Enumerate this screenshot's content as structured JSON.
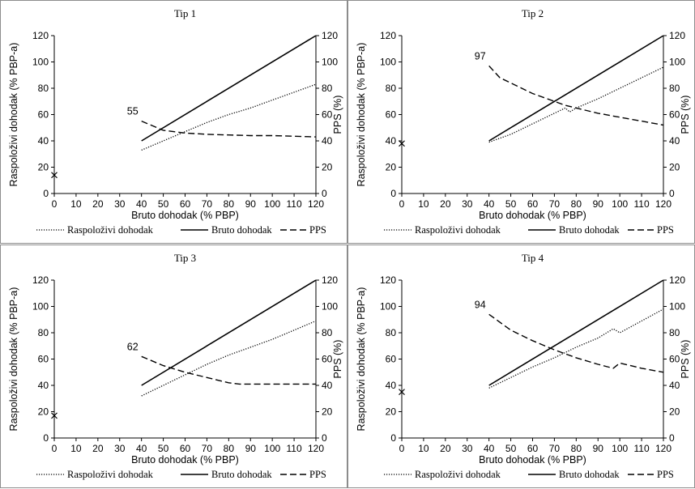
{
  "legend": {
    "items": [
      {
        "label": "Raspoloživi dohodak",
        "style": "dotted"
      },
      {
        "label": "Bruto dohodak",
        "style": "solid"
      },
      {
        "label": "PPS",
        "style": "dashed"
      }
    ]
  },
  "chart_data": [
    {
      "type": "line",
      "title": "Tip 1",
      "xlabel": "Bruto dohodak (% PBP)",
      "ylabel": "Raspoloživi dohodak (% PBP-a)",
      "y2label": "PPS (%)",
      "xlim": [
        0,
        120
      ],
      "ylim": [
        0,
        120
      ],
      "y2lim": [
        0,
        120
      ],
      "xticks": [
        "0",
        "10",
        "20",
        "30",
        "40",
        "50",
        "60",
        "70",
        "80",
        "90",
        "100",
        "110",
        "120"
      ],
      "yticks": [
        "0",
        "20",
        "40",
        "60",
        "80",
        "100",
        "120"
      ],
      "y2ticks": [
        "0",
        "20",
        "40",
        "60",
        "80",
        "100",
        "120"
      ],
      "annotation": "55",
      "cross_point": {
        "x": 0,
        "y": 14
      },
      "series": [
        {
          "name": "Raspoloživi dohodak",
          "x": [
            40,
            50,
            60,
            70,
            80,
            90,
            100,
            110,
            120
          ],
          "y": [
            33,
            40,
            47,
            54,
            60,
            65,
            71,
            77,
            83
          ]
        },
        {
          "name": "Bruto dohodak",
          "x": [
            40,
            120
          ],
          "y": [
            40,
            120
          ]
        },
        {
          "name": "PPS",
          "x": [
            40,
            50,
            60,
            70,
            80,
            90,
            100,
            110,
            120
          ],
          "y": [
            55,
            48,
            46,
            45,
            44.5,
            44,
            44,
            43.5,
            43
          ]
        }
      ]
    },
    {
      "type": "line",
      "title": "Tip 2",
      "xlabel": "Bruto dohodak (% PBP)",
      "ylabel": "Raspoloživi dohodak (% PBP-a)",
      "y2label": "PPS (%)",
      "xlim": [
        0,
        120
      ],
      "ylim": [
        0,
        120
      ],
      "y2lim": [
        0,
        120
      ],
      "xticks": [
        "0",
        "10",
        "20",
        "30",
        "40",
        "50",
        "60",
        "70",
        "80",
        "90",
        "100",
        "110",
        "120"
      ],
      "yticks": [
        "0",
        "20",
        "40",
        "60",
        "80",
        "100",
        "120"
      ],
      "y2ticks": [
        "0",
        "20",
        "40",
        "60",
        "80",
        "100",
        "120"
      ],
      "annotation": "97",
      "cross_point": {
        "x": 0,
        "y": 38
      },
      "series": [
        {
          "name": "Raspoloživi dohodak",
          "x": [
            40,
            50,
            60,
            70,
            75,
            77,
            80,
            90,
            100,
            110,
            120
          ],
          "y": [
            39,
            45,
            53,
            61,
            65,
            62,
            65,
            72,
            80,
            88,
            96
          ]
        },
        {
          "name": "Bruto dohodak",
          "x": [
            40,
            120
          ],
          "y": [
            40,
            120
          ]
        },
        {
          "name": "PPS",
          "x": [
            40,
            45,
            50,
            60,
            70,
            75,
            80,
            90,
            100,
            110,
            120
          ],
          "y": [
            97,
            88,
            84,
            76,
            70,
            67,
            65,
            61,
            58,
            55,
            52
          ]
        }
      ]
    },
    {
      "type": "line",
      "title": "Tip 3",
      "xlabel": "Bruto dohodak (% PBP)",
      "ylabel": "Raspoloživi dohodak (% PBP-a)",
      "y2label": "PPS (%)",
      "xlim": [
        0,
        120
      ],
      "ylim": [
        0,
        120
      ],
      "y2lim": [
        0,
        120
      ],
      "xticks": [
        "0",
        "10",
        "20",
        "30",
        "40",
        "50",
        "60",
        "70",
        "80",
        "90",
        "100",
        "110",
        "120"
      ],
      "yticks": [
        "0",
        "20",
        "40",
        "60",
        "80",
        "100",
        "120"
      ],
      "y2ticks": [
        "0",
        "20",
        "40",
        "60",
        "80",
        "100",
        "120"
      ],
      "annotation": "62",
      "cross_point": {
        "x": 0,
        "y": 17
      },
      "series": [
        {
          "name": "Raspoloživi dohodak",
          "x": [
            40,
            50,
            60,
            70,
            80,
            90,
            100,
            110,
            120
          ],
          "y": [
            32,
            40,
            48,
            56,
            63,
            69,
            75,
            82,
            89
          ]
        },
        {
          "name": "Bruto dohodak",
          "x": [
            40,
            120
          ],
          "y": [
            40,
            120
          ]
        },
        {
          "name": "PPS",
          "x": [
            40,
            50,
            60,
            70,
            80,
            85,
            90,
            100,
            110,
            120
          ],
          "y": [
            62,
            55,
            50,
            46,
            42,
            41,
            41,
            41,
            41,
            41
          ]
        }
      ]
    },
    {
      "type": "line",
      "title": "Tip 4",
      "xlabel": "Bruto dohodak (% PBP)",
      "ylabel": "Raspoloživi dohodak (% PBP-a)",
      "y2label": "PPS (%)",
      "xlim": [
        0,
        120
      ],
      "ylim": [
        0,
        120
      ],
      "y2lim": [
        0,
        120
      ],
      "xticks": [
        "0",
        "10",
        "20",
        "30",
        "40",
        "50",
        "60",
        "70",
        "80",
        "90",
        "100",
        "110",
        "120"
      ],
      "yticks": [
        "0",
        "20",
        "40",
        "60",
        "80",
        "100",
        "120"
      ],
      "y2ticks": [
        "0",
        "20",
        "40",
        "60",
        "80",
        "100",
        "120"
      ],
      "annotation": "94",
      "cross_point": {
        "x": 0,
        "y": 35
      },
      "series": [
        {
          "name": "Raspoloživi dohodak",
          "x": [
            40,
            50,
            60,
            70,
            80,
            90,
            97,
            100,
            110,
            120
          ],
          "y": [
            38,
            46,
            54,
            61,
            69,
            76,
            83,
            80,
            89,
            98
          ]
        },
        {
          "name": "Bruto dohodak",
          "x": [
            40,
            120
          ],
          "y": [
            40,
            120
          ]
        },
        {
          "name": "PPS",
          "x": [
            40,
            50,
            60,
            70,
            80,
            90,
            97,
            100,
            110,
            120
          ],
          "y": [
            94,
            82,
            74,
            67,
            61,
            56,
            53,
            57,
            53,
            50
          ]
        }
      ]
    }
  ]
}
